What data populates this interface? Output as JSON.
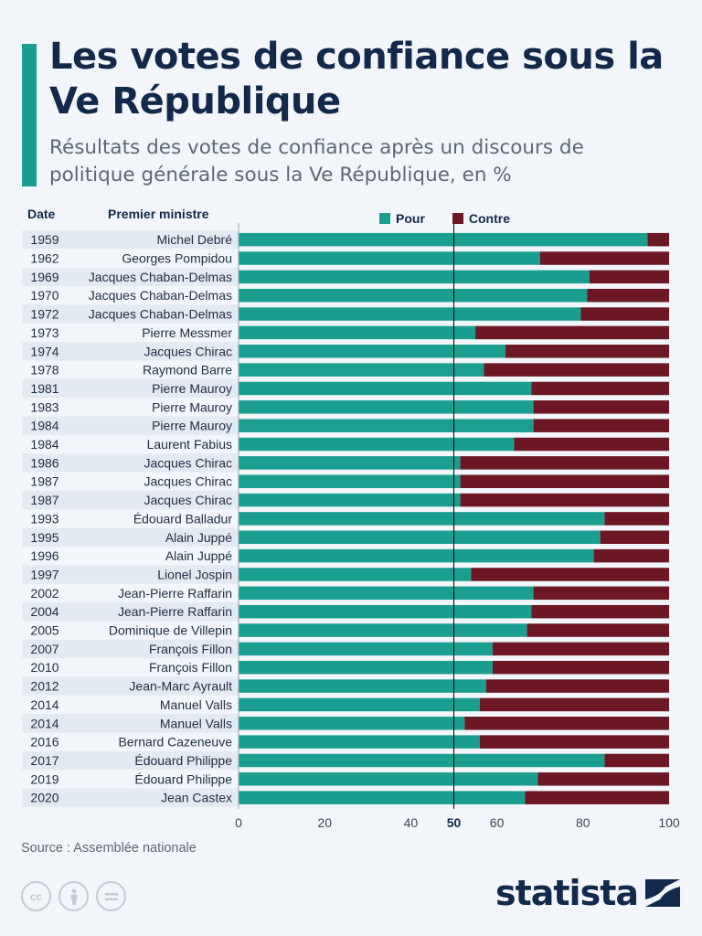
{
  "header": {
    "title": "Les votes de confiance sous la Ve République",
    "subtitle": "Résultats des votes de confiance après un discours de politique générale sous la Ve République, en %"
  },
  "columns": {
    "date": "Date",
    "pm": "Premier ministre"
  },
  "legend": {
    "pour": "Pour",
    "contre": "Contre"
  },
  "colors": {
    "pour": "#1a9e8f",
    "contre": "#6c1723",
    "accent": "#1a9e8f",
    "title": "#13294b"
  },
  "footer": {
    "source": "Source : Assemblée nationale",
    "logo": "statista"
  },
  "icons": [
    "cc-icon",
    "attribution-icon",
    "no-derivatives-icon",
    "statista-logo-icon"
  ],
  "chart_data": {
    "type": "bar",
    "orientation": "horizontal",
    "stacked": true,
    "title": "Les votes de confiance sous la Ve République",
    "subtitle": "Résultats des votes de confiance après un discours de politique générale sous la Ve République, en %",
    "categories": [
      {
        "date": "1959",
        "pm": "Michel Debré"
      },
      {
        "date": "1962",
        "pm": "Georges Pompidou"
      },
      {
        "date": "1969",
        "pm": "Jacques Chaban-Delmas"
      },
      {
        "date": "1970",
        "pm": "Jacques Chaban-Delmas"
      },
      {
        "date": "1972",
        "pm": "Jacques Chaban-Delmas"
      },
      {
        "date": "1973",
        "pm": "Pierre Messmer"
      },
      {
        "date": "1974",
        "pm": "Jacques Chirac"
      },
      {
        "date": "1978",
        "pm": "Raymond Barre"
      },
      {
        "date": "1981",
        "pm": "Pierre Mauroy"
      },
      {
        "date": "1983",
        "pm": "Pierre Mauroy"
      },
      {
        "date": "1984",
        "pm": "Pierre Mauroy"
      },
      {
        "date": "1984",
        "pm": "Laurent Fabius"
      },
      {
        "date": "1986",
        "pm": "Jacques Chirac"
      },
      {
        "date": "1987",
        "pm": "Jacques Chirac"
      },
      {
        "date": "1987",
        "pm": "Jacques Chirac"
      },
      {
        "date": "1993",
        "pm": "Édouard Balladur"
      },
      {
        "date": "1995",
        "pm": "Alain Juppé"
      },
      {
        "date": "1996",
        "pm": "Alain Juppé"
      },
      {
        "date": "1997",
        "pm": "Lionel Jospin"
      },
      {
        "date": "2002",
        "pm": "Jean-Pierre Raffarin"
      },
      {
        "date": "2004",
        "pm": "Jean-Pierre Raffarin"
      },
      {
        "date": "2005",
        "pm": "Dominique de Villepin"
      },
      {
        "date": "2007",
        "pm": "François Fillon"
      },
      {
        "date": "2010",
        "pm": "François Fillon"
      },
      {
        "date": "2012",
        "pm": "Jean-Marc Ayrault"
      },
      {
        "date": "2014",
        "pm": "Manuel Valls"
      },
      {
        "date": "2014",
        "pm": "Manuel Valls"
      },
      {
        "date": "2016",
        "pm": "Bernard Cazeneuve"
      },
      {
        "date": "2017",
        "pm": "Édouard Philippe"
      },
      {
        "date": "2019",
        "pm": "Édouard Philippe"
      },
      {
        "date": "2020",
        "pm": "Jean Castex"
      }
    ],
    "series": [
      {
        "name": "Pour",
        "values": [
          95,
          70,
          81.5,
          81,
          79.5,
          55,
          62,
          57,
          68,
          68.5,
          68.5,
          64,
          51.5,
          51.5,
          51.5,
          85,
          84,
          82.5,
          54,
          68.5,
          68,
          67,
          59,
          59,
          57.5,
          56,
          52.5,
          56,
          85,
          69.5,
          66.5
        ]
      },
      {
        "name": "Contre",
        "values": [
          5,
          30,
          18.5,
          19,
          20.5,
          45,
          38,
          43,
          32,
          31.5,
          31.5,
          36,
          48.5,
          48.5,
          48.5,
          15,
          16,
          17.5,
          46,
          31.5,
          32,
          33,
          41,
          41,
          42.5,
          44,
          47.5,
          44,
          15,
          30.5,
          33.5
        ]
      }
    ],
    "xlim": [
      0,
      100
    ],
    "xticks": [
      0,
      20,
      40,
      50,
      60,
      80,
      100
    ],
    "reference_line": 50,
    "grid": false,
    "legend_position": "top"
  }
}
